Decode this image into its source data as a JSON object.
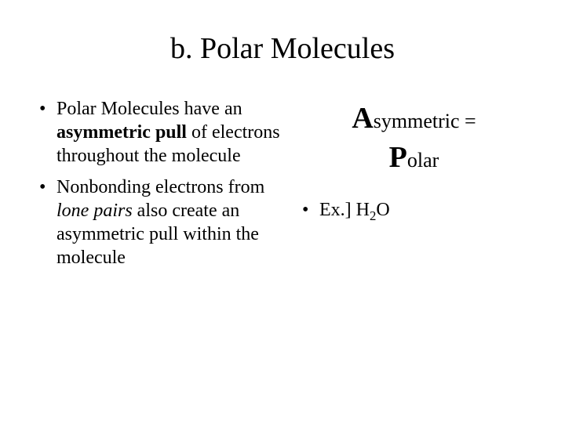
{
  "title": "b.  Polar Molecules",
  "leftBullets": {
    "b1": {
      "t1": "Polar Molecules have an ",
      "bold1": "asymmetric pull",
      "t2": " of electrons throughout the molecule"
    },
    "b2": {
      "t1": "Nonbonding electrons from ",
      "ital1": "lone pairs",
      "t2": " also create an asymmetric pull within the molecule"
    }
  },
  "mnemonic": {
    "big1": "A",
    "rest1": "symmetric =",
    "big2": "P",
    "rest2": "olar"
  },
  "example": {
    "prefix": "Ex.]  H",
    "sub": "2",
    "suffix": "O"
  },
  "colors": {
    "background": "#ffffff",
    "text": "#000000"
  }
}
